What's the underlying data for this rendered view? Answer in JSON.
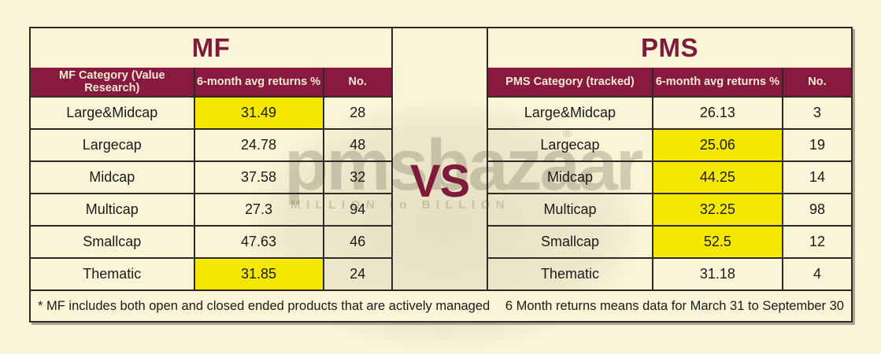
{
  "vs_label": "VS",
  "watermark": {
    "brand": "pmsbazaar",
    "registered": "®",
    "tagline": "MILLION to BILLION"
  },
  "colors": {
    "maroon_header": "#871a3e",
    "maroon_title": "#7e1a3a",
    "highlight_yellow": "#f4e800",
    "cream_background": "#fbf5d8",
    "border": "#2e2b26"
  },
  "left_table": {
    "title": "MF",
    "headers": {
      "category": "MF Category (Value Research)",
      "returns": "6-month avg returns %",
      "count": "No."
    },
    "rows": [
      {
        "category": "Large&Midcap",
        "returns": "31.49",
        "count": "28",
        "highlight": true
      },
      {
        "category": "Largecap",
        "returns": "24.78",
        "count": "48",
        "highlight": false
      },
      {
        "category": "Midcap",
        "returns": "37.58",
        "count": "32",
        "highlight": false
      },
      {
        "category": "Multicap",
        "returns": "27.3",
        "count": "94",
        "highlight": false
      },
      {
        "category": "Smallcap",
        "returns": "47.63",
        "count": "46",
        "highlight": false
      },
      {
        "category": "Thematic",
        "returns": "31.85",
        "count": "24",
        "highlight": true
      }
    ],
    "footnote": "* MF includes both open and closed ended products that are actively managed"
  },
  "right_table": {
    "title": "PMS",
    "headers": {
      "category": "PMS Category (tracked)",
      "returns": "6-month avg returns %",
      "count": "No."
    },
    "rows": [
      {
        "category": "Large&Midcap",
        "returns": "26.13",
        "count": "3",
        "highlight": false
      },
      {
        "category": "Largecap",
        "returns": "25.06",
        "count": "19",
        "highlight": true
      },
      {
        "category": "Midcap",
        "returns": "44.25",
        "count": "14",
        "highlight": true
      },
      {
        "category": "Multicap",
        "returns": "32.25",
        "count": "98",
        "highlight": true
      },
      {
        "category": "Smallcap",
        "returns": "52.5",
        "count": "12",
        "highlight": true
      },
      {
        "category": "Thematic",
        "returns": "31.18",
        "count": "4",
        "highlight": false
      }
    ],
    "footnote": "6 Month returns means data for March 31 to September 30"
  },
  "chart_data": [
    {
      "type": "table",
      "title": "MF",
      "columns": [
        "MF Category (Value Research)",
        "6-month avg returns %",
        "No."
      ],
      "rows": [
        [
          "Large&Midcap",
          31.49,
          28
        ],
        [
          "Largecap",
          24.78,
          48
        ],
        [
          "Midcap",
          37.58,
          32
        ],
        [
          "Multicap",
          27.3,
          94
        ],
        [
          "Smallcap",
          47.63,
          46
        ],
        [
          "Thematic",
          31.85,
          24
        ]
      ],
      "highlighted_return_rows": [
        "Large&Midcap",
        "Thematic"
      ],
      "footnote": "* MF includes both open and closed ended products that are actively managed"
    },
    {
      "type": "table",
      "title": "PMS",
      "columns": [
        "PMS Category (tracked)",
        "6-month avg returns %",
        "No."
      ],
      "rows": [
        [
          "Large&Midcap",
          26.13,
          3
        ],
        [
          "Largecap",
          25.06,
          19
        ],
        [
          "Midcap",
          44.25,
          14
        ],
        [
          "Multicap",
          32.25,
          98
        ],
        [
          "Smallcap",
          52.5,
          12
        ],
        [
          "Thematic",
          31.18,
          4
        ]
      ],
      "highlighted_return_rows": [
        "Largecap",
        "Midcap",
        "Multicap",
        "Smallcap"
      ],
      "footnote": "6 Month returns means data for March 31 to September 30"
    }
  ]
}
